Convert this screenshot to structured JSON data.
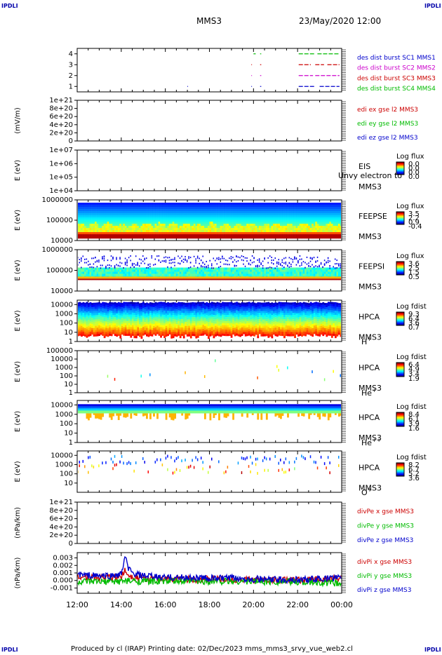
{
  "corner_marks": [
    "IPDLI",
    "IPDLI",
    "IPDLI",
    "IPDLI"
  ],
  "header": {
    "title": "MMS3",
    "datetime": "23/May/2020 12:00"
  },
  "footer": {
    "text": "Produced by cl (IRAP)   Printing date: 02/Dec/2023   mms_mms3_srvy_vue_web2.cl"
  },
  "x_axis": {
    "ticks": [
      "12:00",
      "14:00",
      "16:00",
      "18:00",
      "20:00",
      "22:00",
      "00:00"
    ],
    "range_hours": [
      12,
      24
    ]
  },
  "chart_data": [
    {
      "type": "scatter",
      "ylabel": "",
      "yticks": [
        "1",
        "2",
        "3",
        "4"
      ],
      "ylim": [
        0.5,
        4.5
      ],
      "legend": [
        {
          "label": "des dist burst SC1 MMS1",
          "color": "#0000cc"
        },
        {
          "label": "des dist burst SC2 MMS2",
          "color": "#cc00cc"
        },
        {
          "label": "des dist burst SC3 MMS3",
          "color": "#cc0000"
        },
        {
          "label": "des dist burst SC4 MMS4",
          "color": "#00bb00"
        }
      ],
      "series": [
        {
          "level": 4,
          "color": "#00bb00",
          "intervals": [
            [
              20.0,
              20.1
            ],
            [
              20.3,
              20.35
            ],
            [
              22.05,
              22.8
            ],
            [
              22.9,
              23.9
            ]
          ]
        },
        {
          "level": 3,
          "color": "#cc0000",
          "intervals": [
            [
              19.9,
              19.93
            ],
            [
              20.3,
              20.35
            ],
            [
              22.05,
              22.6
            ],
            [
              22.8,
              23.2
            ],
            [
              23.35,
              23.9
            ]
          ]
        },
        {
          "level": 2,
          "color": "#cc00cc",
          "intervals": [
            [
              19.9,
              19.93
            ],
            [
              20.3,
              20.35
            ],
            [
              22.05,
              22.7
            ],
            [
              22.8,
              23.9
            ]
          ]
        },
        {
          "level": 1,
          "color": "#0000cc",
          "intervals": [
            [
              17.0,
              17.03
            ],
            [
              19.9,
              19.93
            ],
            [
              20.3,
              20.35
            ],
            [
              22.05,
              22.8
            ],
            [
              23.0,
              23.9
            ]
          ]
        }
      ]
    },
    {
      "type": "line",
      "ylabel": "(mV/m)",
      "yticks": [
        "0",
        "2e+20",
        "4e+20",
        "6e+20",
        "8e+20",
        "1e+21"
      ],
      "ylim": [
        0,
        1e+21
      ],
      "legend": [
        {
          "label": "edi ex gse l2 MMS3",
          "color": "#cc0000"
        },
        {
          "label": "edi ey gse l2 MMS3",
          "color": "#00bb00"
        },
        {
          "label": "edi ez gse l2 MMS3",
          "color": "#0000cc"
        }
      ],
      "series": [
        {
          "name": "zero",
          "value": 0,
          "dashed": true
        }
      ]
    },
    {
      "type": "heatmap",
      "ylabel": "E (eV)",
      "yticks": [
        "1e+04",
        "1e+05",
        "1e+06",
        "1e+07"
      ],
      "ylim": [
        10000,
        10000000
      ],
      "log_y": true,
      "instrument": [
        "EIS",
        "MMS3"
      ],
      "overlay_text": "Unvy electron to",
      "colorbar": {
        "title": "Log flux",
        "ticks": [
          "0.0",
          "0.0",
          "0.0",
          "0.0"
        ]
      },
      "data": "empty"
    },
    {
      "type": "heatmap",
      "ylabel": "E (eV)",
      "yticks": [
        "10000",
        "100000",
        "1000000"
      ],
      "ylim": [
        10000,
        1000000
      ],
      "log_y": true,
      "instrument": [
        "FEEPSE",
        "MMS3"
      ],
      "colorbar": {
        "title": "Log flux",
        "ticks": [
          "3.5",
          "2.2",
          "0.9",
          "-0.4"
        ]
      }
    },
    {
      "type": "heatmap",
      "ylabel": "E (eV)",
      "yticks": [
        "10000",
        "100000",
        "1000000"
      ],
      "ylim": [
        10000,
        1000000
      ],
      "log_y": true,
      "instrument": [
        "FEEPSI",
        "MMS3"
      ],
      "colorbar": {
        "title": "Log flux",
        "ticks": [
          "3.6",
          "2.5",
          "1.5",
          "0.5"
        ]
      }
    },
    {
      "type": "heatmap",
      "ylabel": "E (eV)",
      "yticks": [
        "1",
        "10",
        "100",
        "1000",
        "10000"
      ],
      "ylim": [
        1,
        30000
      ],
      "log_y": true,
      "instrument": [
        "HPCA",
        "MMS3"
      ],
      "species": "H",
      "species_sup": "+",
      "colorbar": {
        "title": "Log fdist",
        "ticks": [
          "9.3",
          "6.4",
          "3.6",
          "0.7"
        ]
      }
    },
    {
      "type": "heatmap",
      "ylabel": "E (eV)",
      "yticks": [
        "1",
        "10",
        "100",
        "1000",
        "10000",
        "100000"
      ],
      "ylim": [
        1,
        100000
      ],
      "log_y": true,
      "instrument": [
        "HPCA",
        "MMS3"
      ],
      "species": "He",
      "species_sup": "+",
      "colorbar": {
        "title": "Log fdist",
        "ticks": [
          "6.4",
          "4.9",
          "3.4",
          "1.9"
        ]
      }
    },
    {
      "type": "heatmap",
      "ylabel": "E (eV)",
      "yticks": [
        "1",
        "10",
        "100",
        "1000",
        "10000"
      ],
      "ylim": [
        1,
        30000
      ],
      "log_y": true,
      "instrument": [
        "HPCA",
        "MMS3"
      ],
      "species": "He",
      "species_sup": "++",
      "colorbar": {
        "title": "Log fdist",
        "ticks": [
          "8.4",
          "6.1",
          "3.9",
          "1.6"
        ]
      }
    },
    {
      "type": "heatmap",
      "ylabel": "E (eV)",
      "yticks": [
        "10",
        "100",
        "1000",
        "10000"
      ],
      "ylim": [
        1,
        30000
      ],
      "log_y": true,
      "instrument": [
        "HPCA",
        "MMS3"
      ],
      "species": "O",
      "species_sup": "+",
      "colorbar": {
        "title": "Log fdist",
        "ticks": [
          "8.2",
          "6.7",
          "5.2",
          "3.6"
        ]
      }
    },
    {
      "type": "line",
      "ylabel": "(nPa/km)",
      "yticks": [
        "0",
        "2e+20",
        "4e+20",
        "6e+20",
        "8e+20",
        "1e+21"
      ],
      "ylim": [
        0,
        1e+21
      ],
      "legend": [
        {
          "label": "divPe x gse MMS3",
          "color": "#cc0000"
        },
        {
          "label": "divPe y gse MMS3",
          "color": "#00bb00"
        },
        {
          "label": "divPe z gse MMS3",
          "color": "#0000cc"
        }
      ],
      "series": [
        {
          "name": "zero",
          "value": 0,
          "dashed": true
        }
      ]
    },
    {
      "type": "line",
      "ylabel": "(nPa/km)",
      "yticks": [
        "-0.001",
        "0.000",
        "0.001",
        "0.002",
        "0.003"
      ],
      "ylim": [
        -0.0017,
        0.0037
      ],
      "legend": [
        {
          "label": "divPi x gse MMS3",
          "color": "#cc0000"
        },
        {
          "label": "divPi y gse MMS3",
          "color": "#00bb00"
        },
        {
          "label": "divPi z gse MMS3",
          "color": "#0000cc"
        }
      ],
      "series": [
        {
          "name": "x",
          "color": "#cc0000",
          "x": [
            12.0,
            13.0,
            13.5,
            14.0,
            14.15,
            14.3,
            14.5,
            15.0,
            16.0,
            18.0,
            20.0,
            22.0,
            23.0,
            24.0
          ],
          "y": [
            0.0006,
            0.0004,
            0.0004,
            0.0005,
            0.0013,
            0.0009,
            0.0005,
            0.0003,
            0.0002,
            0.0002,
            0.0001,
            0.0,
            0.0002,
            0.0003
          ]
        },
        {
          "name": "y",
          "color": "#00bb00",
          "x": [
            12.0,
            13.0,
            14.0,
            15.0,
            16.0,
            18.0,
            20.0,
            22.0,
            23.0,
            24.0
          ],
          "y": [
            -0.0002,
            -0.0002,
            -0.0001,
            -0.0001,
            -0.0001,
            -0.0001,
            -0.0001,
            -0.0002,
            -0.0003,
            -0.0004
          ]
        },
        {
          "name": "z",
          "color": "#0000cc",
          "x": [
            12.0,
            12.5,
            13.0,
            13.5,
            14.0,
            14.1,
            14.2,
            14.3,
            14.5,
            15.0,
            16.0,
            17.0,
            18.0,
            19.0,
            20.0,
            21.0,
            22.0,
            23.0,
            23.5,
            24.0
          ],
          "y": [
            0.0008,
            0.0007,
            0.0006,
            0.0006,
            0.0008,
            0.0022,
            0.003,
            0.0018,
            0.0009,
            0.0006,
            0.0004,
            0.0004,
            0.0003,
            0.0003,
            0.0002,
            0.0001,
            0.0001,
            0.0002,
            0.0003,
            0.0004
          ]
        }
      ]
    }
  ]
}
